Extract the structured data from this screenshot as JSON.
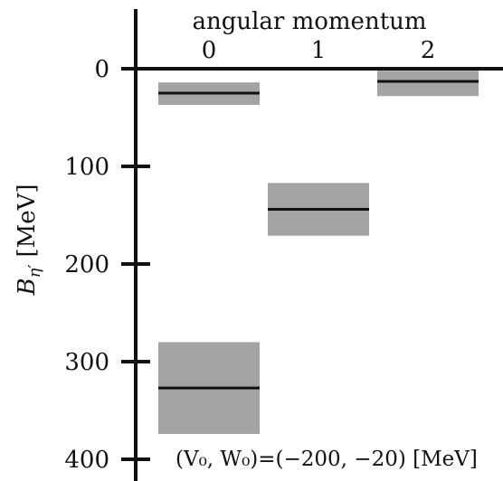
{
  "chart_data": {
    "type": "bar",
    "title": "",
    "top_axis_label": "angular momentum",
    "categories": [
      "0",
      "1",
      "2"
    ],
    "ylabel_symbol": "B",
    "ylabel_sub": "η′",
    "ylabel_unit": "[MeV]",
    "yticks": [
      "0",
      "100",
      "200",
      "300",
      "400"
    ],
    "y_inverted": true,
    "ylim": [
      0,
      400
    ],
    "levels": [
      {
        "l": 0,
        "center": 25,
        "low": 14,
        "high": 37
      },
      {
        "l": 0,
        "center": 327,
        "low": 280,
        "high": 374
      },
      {
        "l": 1,
        "center": 144,
        "low": 117,
        "high": 171
      },
      {
        "l": 2,
        "center": 13,
        "low": 2,
        "high": 28
      }
    ],
    "annotation": "(V₀, W₀)=(−200, −20) [MeV]",
    "band_color": "#a3a3a5",
    "line_color": "#111111"
  }
}
